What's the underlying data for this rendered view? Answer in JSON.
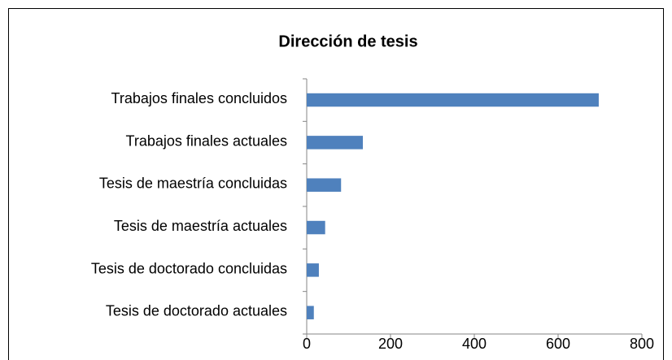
{
  "chart_data": {
    "type": "bar",
    "orientation": "horizontal",
    "title": "Dirección de tesis",
    "categories": [
      "Trabajos finales concluidos",
      "Trabajos finales actuales",
      "Tesis de maestría concluidas",
      "Tesis de maestría actuales",
      "Tesis de doctorado concluidas",
      "Tesis de doctorado actuales"
    ],
    "values": [
      697,
      134,
      82,
      44,
      29,
      17
    ],
    "color": "#4f81bd",
    "xlim": [
      0,
      800
    ],
    "xticks": [
      0,
      200,
      400,
      600,
      800
    ],
    "grid": false
  }
}
